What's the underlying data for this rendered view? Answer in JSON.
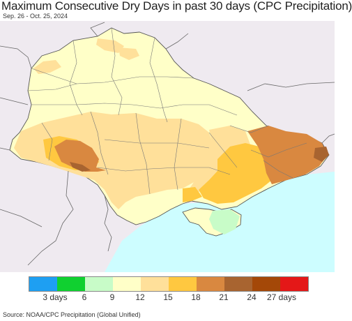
{
  "title": "Maximum Consecutive Dry Days in past 30 days (CPC Precipitation)",
  "date_range": "Sep. 26 - Oct. 25, 2024",
  "source": "Source: NOAA/CPC Precipitation (Global Unified)",
  "colors": {
    "background_land": "#efeaf0",
    "sea": "#cdfdff",
    "borders": "#666666"
  },
  "legend": {
    "colors": [
      "#1e9ff2",
      "#10d030",
      "#c8fcc8",
      "#ffffc8",
      "#ffe09a",
      "#ffc840",
      "#d98840",
      "#a86430",
      "#a44808",
      "#e41818"
    ],
    "tick_labels": [
      "3 days",
      "6",
      "9",
      "12",
      "15",
      "18",
      "21",
      "24",
      "27 days"
    ]
  }
}
